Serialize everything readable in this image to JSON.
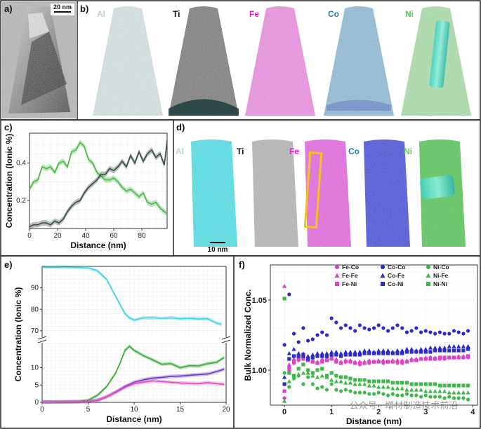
{
  "panel_a": {
    "label": "a)",
    "scalebar": "20 nm"
  },
  "panel_b": {
    "label": "b)",
    "elements": [
      {
        "name": "Al",
        "color": "#b9d3d7"
      },
      {
        "name": "Ti",
        "color": "#111111"
      },
      {
        "name": "Fe",
        "color": "#e81fd2"
      },
      {
        "name": "Co",
        "color": "#1f7fb5"
      },
      {
        "name": "Ni",
        "color": "#5cc95c"
      }
    ]
  },
  "panel_d": {
    "label": "d)",
    "scalebar": "10 nm",
    "elements": [
      {
        "name": "Al",
        "color": "#b9d3d7"
      },
      {
        "name": "Ti",
        "color": "#111111"
      },
      {
        "name": "Fe",
        "color": "#e81fd2"
      },
      {
        "name": "Co",
        "color": "#1f7fb5"
      },
      {
        "name": "Ni",
        "color": "#5cc95c"
      }
    ]
  },
  "watermark": "公众号 · 增材制造技术前沿",
  "chart_data": [
    {
      "panel": "c)",
      "type": "line",
      "xlabel": "Distance (nm)",
      "ylabel": "Concentration (Ionic %)",
      "xlim": [
        0,
        98
      ],
      "ylim": [
        0.05,
        0.56
      ],
      "xticks": [
        0,
        20,
        40,
        60,
        80
      ],
      "yticks": [
        0.2,
        0.4
      ],
      "ytick_labels": [
        "0.2",
        "0.4"
      ],
      "series": [
        {
          "name": "green",
          "color": "#4db848",
          "x": [
            0,
            3,
            6,
            9,
            12,
            15,
            18,
            21,
            24,
            27,
            30,
            33,
            36,
            39,
            42,
            45,
            48,
            51,
            54,
            57,
            60,
            63,
            66,
            69,
            72,
            75,
            78,
            81,
            84,
            87,
            90,
            93,
            96,
            98
          ],
          "y": [
            0.26,
            0.3,
            0.31,
            0.38,
            0.37,
            0.38,
            0.35,
            0.4,
            0.41,
            0.38,
            0.46,
            0.47,
            0.51,
            0.49,
            0.42,
            0.4,
            0.35,
            0.33,
            0.31,
            0.31,
            0.32,
            0.3,
            0.27,
            0.25,
            0.26,
            0.24,
            0.22,
            0.24,
            0.19,
            0.18,
            0.19,
            0.16,
            0.14,
            0.13
          ]
        },
        {
          "name": "dark",
          "color": "#3a4a48",
          "x": [
            0,
            3,
            6,
            9,
            12,
            15,
            18,
            21,
            24,
            27,
            30,
            33,
            36,
            39,
            42,
            45,
            48,
            51,
            54,
            57,
            60,
            63,
            66,
            69,
            72,
            75,
            78,
            81,
            84,
            87,
            90,
            93,
            96,
            98
          ],
          "y": [
            0.06,
            0.07,
            0.07,
            0.08,
            0.08,
            0.07,
            0.09,
            0.08,
            0.1,
            0.14,
            0.17,
            0.19,
            0.2,
            0.24,
            0.27,
            0.29,
            0.31,
            0.34,
            0.34,
            0.37,
            0.36,
            0.38,
            0.41,
            0.38,
            0.44,
            0.4,
            0.46,
            0.41,
            0.45,
            0.47,
            0.43,
            0.45,
            0.39,
            0.52
          ]
        }
      ]
    },
    {
      "panel": "e)",
      "type": "line",
      "xlabel": "Distance (nm)",
      "ylabel": "Concentration (Ionic %)",
      "xlim": [
        0,
        20
      ],
      "xticks": [
        0,
        5,
        10,
        15,
        20
      ],
      "upper_ylim": [
        68,
        100
      ],
      "upper_yticks": [
        70,
        80,
        90
      ],
      "lower_ylim": [
        0,
        17
      ],
      "lower_yticks": [
        0,
        5,
        10
      ],
      "broken_axis": true,
      "series": [
        {
          "name": "cyan",
          "color": "#3ed3e6",
          "x": [
            0,
            2,
            4,
            5,
            6,
            7,
            8,
            9,
            9.5,
            10,
            11,
            12,
            13,
            14,
            15,
            16,
            17,
            18,
            19,
            19.5
          ],
          "y": [
            99.6,
            99.6,
            99.5,
            99.3,
            98,
            94,
            86,
            78,
            76,
            75,
            76,
            76,
            75.8,
            76,
            75.6,
            75.8,
            75.5,
            75.6,
            73.5,
            73
          ]
        },
        {
          "name": "green",
          "color": "#3aaa3a",
          "x": [
            0,
            4,
            5,
            6,
            7,
            8,
            8.5,
            9,
            9.5,
            10,
            11,
            12,
            13,
            14,
            15,
            16,
            17,
            18,
            19,
            19.8
          ],
          "y": [
            0.1,
            0.2,
            0.6,
            2.0,
            4.5,
            8.5,
            11.5,
            15,
            16.2,
            15.0,
            13.5,
            12.3,
            11.0,
            11.2,
            10.0,
            10.6,
            10.5,
            11.2,
            11.6,
            13.0
          ]
        },
        {
          "name": "purple",
          "color": "#6c3bbd",
          "x": [
            0,
            5,
            6,
            7,
            8,
            9,
            10,
            11,
            12,
            13,
            14,
            15,
            16,
            17,
            18,
            19,
            19.8
          ],
          "y": [
            0.1,
            0.2,
            0.6,
            1.6,
            3.0,
            4.6,
            5.8,
            6.5,
            7.0,
            7.2,
            7.5,
            7.6,
            7.8,
            8.0,
            8.2,
            8.9,
            9.6
          ]
        },
        {
          "name": "magenta",
          "color": "#e24fbf",
          "x": [
            0,
            5,
            6,
            7,
            8,
            9,
            10,
            11,
            12,
            13,
            14,
            15,
            16,
            17,
            18,
            19,
            19.8
          ],
          "y": [
            0.1,
            0.2,
            0.6,
            1.6,
            2.9,
            4.3,
            5.4,
            5.8,
            6.2,
            6.0,
            5.8,
            5.6,
            5.5,
            5.4,
            5.7,
            5.4,
            5.2
          ]
        }
      ]
    },
    {
      "panel": "f)",
      "type": "scatter",
      "xlabel": "Distance (nm)",
      "ylabel": "Bulk Normalized Conc.",
      "xlim": [
        -0.3,
        4.1
      ],
      "ylim": [
        0.975,
        1.075
      ],
      "xticks": [
        0,
        1,
        2,
        3,
        4
      ],
      "yticks": [
        1.0,
        1.05
      ],
      "ytick_labels": [
        "1.00",
        "1.05"
      ],
      "x": [
        0,
        0.1,
        0.2,
        0.3,
        0.4,
        0.5,
        0.6,
        0.7,
        0.8,
        0.9,
        1.0,
        1.1,
        1.2,
        1.3,
        1.4,
        1.5,
        1.6,
        1.7,
        1.8,
        1.9,
        2.0,
        2.1,
        2.2,
        2.3,
        2.4,
        2.5,
        2.6,
        2.7,
        2.8,
        2.9,
        3.0,
        3.1,
        3.2,
        3.3,
        3.4,
        3.5,
        3.6,
        3.7,
        3.8,
        3.9
      ],
      "series": [
        {
          "name": "Fe-Co",
          "color": "#e040c8",
          "marker": "circle",
          "values": [
            0.98,
            1.0,
            1.005,
            1.007,
            1.01,
            1.008,
            1.006,
            1.005,
            1.007,
            1.009,
            1.01,
            1.007,
            1.005,
            1.006,
            1.006,
            1.005,
            1.004,
            1.005,
            1.005,
            1.006,
            1.006,
            1.005,
            1.006,
            1.006,
            1.005,
            1.005,
            1.006,
            1.007,
            1.007,
            1.008,
            1.008,
            1.009,
            1.008,
            1.008,
            1.008,
            1.009,
            1.009,
            1.009,
            1.009,
            1.009
          ]
        },
        {
          "name": "Fe-Fe",
          "color": "#e040c8",
          "marker": "triangle",
          "values": [
            1.06,
            1.004,
            1.008,
            1.01,
            1.012,
            1.008,
            1.007,
            1.006,
            1.008,
            1.008,
            1.009,
            1.008,
            1.006,
            1.007,
            1.007,
            1.006,
            1.006,
            1.006,
            1.007,
            1.006,
            1.007,
            1.007,
            1.006,
            1.007,
            1.007,
            1.007,
            1.007,
            1.008,
            1.008,
            1.008,
            1.009,
            1.009,
            1.009,
            1.009,
            1.009,
            1.009,
            1.009,
            1.01,
            1.01,
            1.01
          ]
        },
        {
          "name": "Fe-Ni",
          "color": "#e040c8",
          "marker": "square",
          "values": [
            0.985,
            1.002,
            1.006,
            1.008,
            1.008,
            1.007,
            1.006,
            1.005,
            1.006,
            1.007,
            1.008,
            1.006,
            1.005,
            1.006,
            1.006,
            1.005,
            1.005,
            1.005,
            1.006,
            1.006,
            1.006,
            1.006,
            1.006,
            1.006,
            1.006,
            1.006,
            1.006,
            1.007,
            1.007,
            1.008,
            1.008,
            1.008,
            1.008,
            1.009,
            1.009,
            1.009,
            1.009,
            1.009,
            1.009,
            1.01
          ]
        },
        {
          "name": "Co-Co",
          "color": "#2a2acf",
          "marker": "circle",
          "values": [
            1.018,
            1.054,
            1.026,
            1.02,
            1.03,
            1.021,
            1.022,
            1.025,
            1.027,
            1.025,
            1.037,
            1.034,
            1.03,
            1.032,
            1.03,
            1.028,
            1.032,
            1.03,
            1.029,
            1.03,
            1.032,
            1.03,
            1.028,
            1.03,
            1.032,
            1.03,
            1.027,
            1.028,
            1.03,
            1.027,
            1.028,
            1.027,
            1.026,
            1.027,
            1.026,
            1.026,
            1.028,
            1.027,
            1.026,
            1.028
          ]
        },
        {
          "name": "Co-Fe",
          "color": "#2a2acf",
          "marker": "triangle",
          "values": [
            0.995,
            1.012,
            1.015,
            1.012,
            1.01,
            1.01,
            1.011,
            1.012,
            1.012,
            1.012,
            1.013,
            1.013,
            1.012,
            1.013,
            1.013,
            1.013,
            1.013,
            1.014,
            1.014,
            1.013,
            1.014,
            1.014,
            1.014,
            1.013,
            1.014,
            1.014,
            1.015,
            1.015,
            1.014,
            1.015,
            1.015,
            1.016,
            1.016,
            1.016,
            1.016,
            1.017,
            1.017,
            1.017,
            1.017,
            1.017
          ]
        },
        {
          "name": "Co-Ni",
          "color": "#2a2acf",
          "marker": "square",
          "values": [
            0.99,
            1.008,
            1.01,
            1.01,
            1.011,
            1.008,
            1.009,
            1.01,
            1.01,
            1.01,
            1.011,
            1.011,
            1.01,
            1.011,
            1.011,
            1.011,
            1.011,
            1.012,
            1.012,
            1.012,
            1.012,
            1.012,
            1.012,
            1.012,
            1.012,
            1.012,
            1.013,
            1.013,
            1.013,
            1.013,
            1.013,
            1.013,
            1.014,
            1.014,
            1.014,
            1.014,
            1.014,
            1.014,
            1.014,
            1.015
          ]
        },
        {
          "name": "Ni-Co",
          "color": "#3fb84a",
          "marker": "circle",
          "values": [
            0.998,
            0.988,
            0.994,
            0.996,
            0.99,
            0.995,
            0.99,
            0.987,
            0.988,
            0.986,
            0.99,
            0.986,
            0.985,
            0.986,
            0.985,
            0.984,
            0.984,
            0.984,
            0.983,
            0.983,
            0.984,
            0.983,
            0.982,
            0.983,
            0.982,
            0.982,
            0.983,
            0.982,
            0.982,
            0.981,
            0.982,
            0.981,
            0.981,
            0.981,
            0.98,
            0.981,
            0.98,
            0.98,
            0.98,
            0.979
          ]
        },
        {
          "name": "Ni-Fe",
          "color": "#3fb84a",
          "marker": "triangle",
          "values": [
            0.978,
            0.992,
            0.996,
            0.997,
            0.998,
            0.998,
            0.996,
            0.995,
            0.996,
            0.995,
            0.993,
            0.992,
            0.992,
            0.991,
            0.991,
            0.99,
            0.99,
            0.99,
            0.989,
            0.989,
            0.988,
            0.988,
            0.988,
            0.987,
            0.987,
            0.987,
            0.986,
            0.986,
            0.986,
            0.986,
            0.985,
            0.985,
            0.985,
            0.985,
            0.985,
            0.984,
            0.984,
            0.984,
            0.984,
            0.984
          ]
        },
        {
          "name": "Ni-Ni",
          "color": "#3fb84a",
          "marker": "square",
          "values": [
            1.051,
            0.998,
            0.996,
            1.001,
            1.004,
            1.0,
            0.998,
            1.0,
            1.001,
            0.996,
            0.998,
            0.996,
            0.995,
            0.995,
            0.994,
            0.993,
            0.993,
            0.993,
            0.992,
            0.992,
            0.992,
            0.992,
            0.992,
            0.991,
            0.991,
            0.991,
            0.991,
            0.99,
            0.99,
            0.99,
            0.99,
            0.99,
            0.99,
            0.989,
            0.989,
            0.989,
            0.989,
            0.989,
            0.989,
            0.989
          ]
        }
      ]
    }
  ]
}
